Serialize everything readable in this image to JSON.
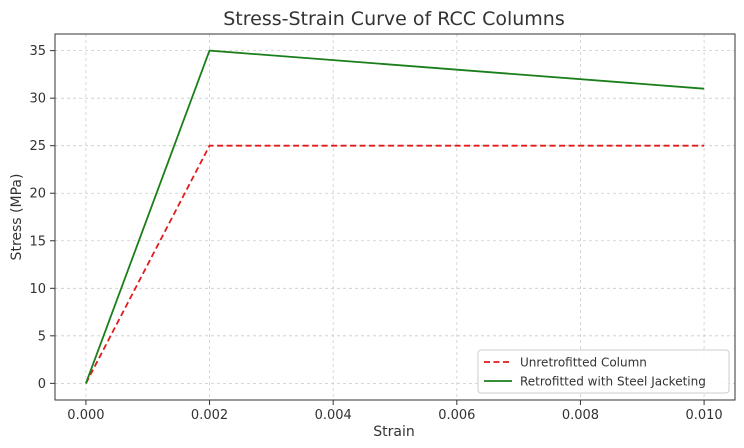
{
  "chart_data": {
    "type": "line",
    "title": "Stress-Strain Curve of RCC Columns",
    "xlabel": "Strain",
    "ylabel": "Stress (MPa)",
    "xlim": [
      -0.0005,
      0.0105
    ],
    "ylim": [
      -1.75,
      36.75
    ],
    "xticks": [
      0.0,
      0.002,
      0.004,
      0.006,
      0.008,
      0.01
    ],
    "xtick_labels": [
      "0.000",
      "0.002",
      "0.004",
      "0.006",
      "0.008",
      "0.010"
    ],
    "yticks": [
      0,
      5,
      10,
      15,
      20,
      25,
      30,
      35
    ],
    "ytick_labels": [
      "0",
      "5",
      "10",
      "15",
      "20",
      "25",
      "30",
      "35"
    ],
    "grid": true,
    "legend_position": "bottom-right",
    "series": [
      {
        "name": "Unretrofitted Column",
        "color": "#e31a1c",
        "style": "dashed",
        "x": [
          0.0,
          0.002,
          0.01
        ],
        "y": [
          0,
          25,
          25
        ]
      },
      {
        "name": "Retrofitted with Steel Jacketing",
        "color": "#1a7f1a",
        "style": "solid",
        "x": [
          0.0,
          0.002,
          0.01
        ],
        "y": [
          0,
          35,
          31
        ]
      }
    ]
  }
}
